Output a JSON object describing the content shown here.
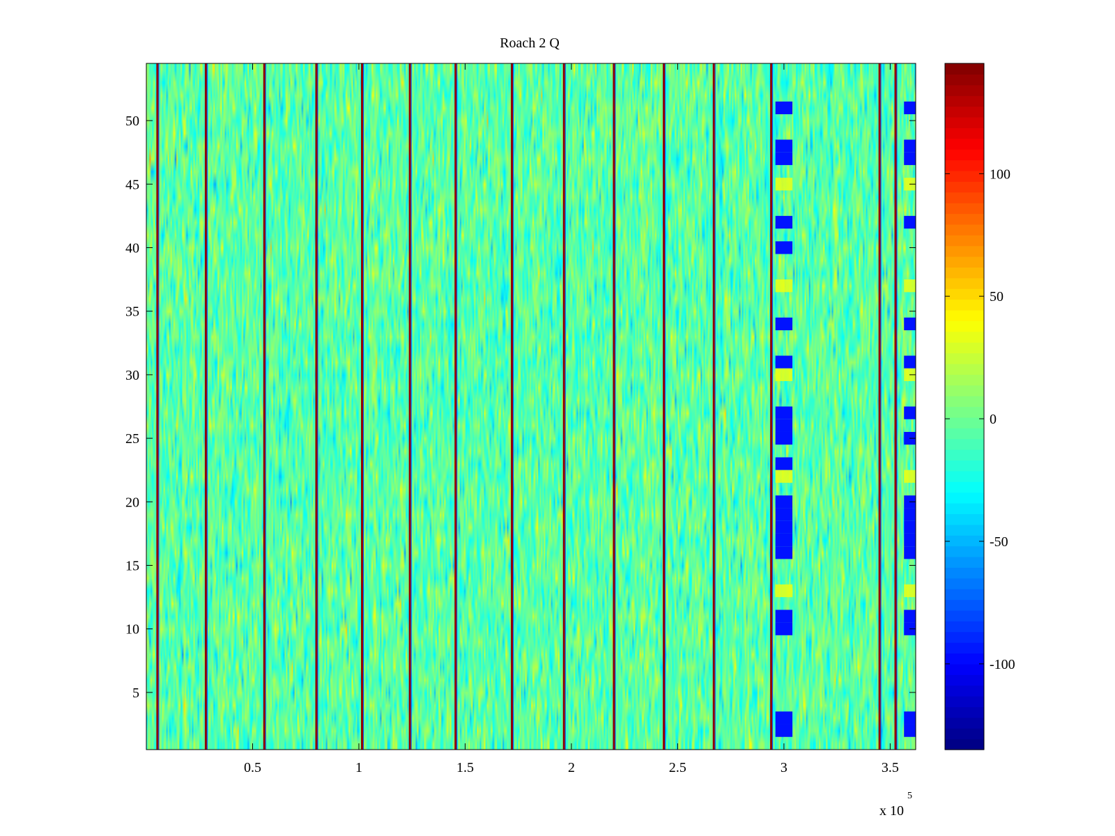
{
  "chart_data": {
    "type": "heatmap",
    "title": "Roach 2 Q",
    "xlabel": "",
    "ylabel": "",
    "x_exponent_label": "x 10",
    "x_exponent_power": "5",
    "xlim": [
      0,
      3.62
    ],
    "ylim": [
      0.5,
      54.5
    ],
    "x_ticks": [
      0.5,
      1,
      1.5,
      2,
      2.5,
      3,
      3.5
    ],
    "x_tick_labels": [
      "0.5",
      "1",
      "1.5",
      "2",
      "2.5",
      "3",
      "3.5"
    ],
    "y_ticks": [
      5,
      10,
      15,
      20,
      25,
      30,
      35,
      40,
      45,
      50
    ],
    "y_tick_labels": [
      "5",
      "10",
      "15",
      "20",
      "25",
      "30",
      "35",
      "40",
      "45",
      "50"
    ],
    "rows": 54,
    "background_value_range": [
      -40,
      30
    ],
    "spike_columns_x": [
      0.052,
      0.28,
      0.555,
      0.8,
      1.015,
      1.24,
      1.455,
      1.72,
      1.965,
      2.2,
      2.435,
      2.67,
      2.94,
      3.45,
      3.525
    ],
    "spike_value": 140,
    "anomaly_bands": [
      {
        "x_start": 2.96,
        "x_end": 3.04,
        "low_rows": [
          51,
          48,
          47,
          42,
          40,
          34,
          31,
          27,
          26,
          25,
          23,
          20,
          19,
          18,
          17,
          16,
          11,
          10,
          3,
          2
        ],
        "low_value": -95,
        "high_rows": [
          45,
          37,
          30,
          22,
          13
        ],
        "high_value": 35
      },
      {
        "x_start": 3.565,
        "x_end": 3.62,
        "low_rows": [
          51,
          48,
          47,
          42,
          34,
          31,
          27,
          25,
          20,
          19,
          18,
          17,
          16,
          11,
          10,
          3,
          2
        ],
        "low_value": -95,
        "high_rows": [
          45,
          37,
          30,
          22,
          13
        ],
        "high_value": 35
      }
    ],
    "colorbar": {
      "colormap": "jet",
      "range": [
        -135,
        145
      ],
      "ticks": [
        -100,
        -50,
        0,
        50,
        100
      ],
      "tick_labels": [
        "-100",
        "-50",
        "0",
        "50",
        "100"
      ]
    }
  }
}
